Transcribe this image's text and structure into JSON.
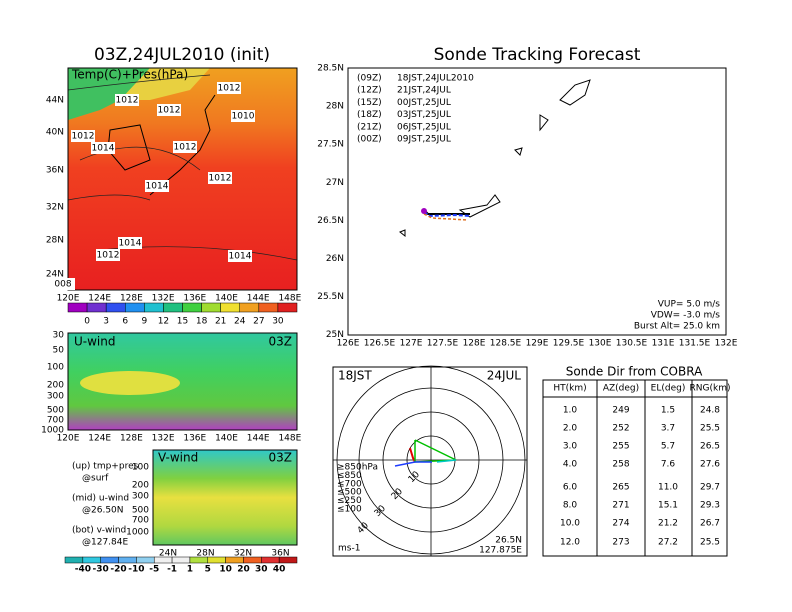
{
  "map_panel": {
    "title": "03Z,24JUL2010 (init)",
    "label": "Temp(C)+Pres(hPa)",
    "lat_labels": [
      "44N",
      "40N",
      "36N",
      "32N",
      "28N",
      "24N"
    ],
    "lon_labels": [
      "120E",
      "124E",
      "128E",
      "132E",
      "136E",
      "140E",
      "144E",
      "148E"
    ],
    "isobar_labels": [
      "1012",
      "1012",
      "1012",
      "1010",
      "1012",
      "1014",
      "1012",
      "1012",
      "1014",
      "1014",
      "1012",
      "1014",
      "008"
    ],
    "colorbar_labels": [
      "0",
      "3",
      "6",
      "9",
      "12",
      "15",
      "18",
      "21",
      "24",
      "27",
      "30"
    ]
  },
  "u_wind_panel": {
    "label": "U-wind",
    "time": "03Z",
    "pressure_labels": [
      "30",
      "50",
      "100",
      "200",
      "300",
      "500",
      "700",
      "1000"
    ],
    "lon_labels": [
      "120E",
      "124E",
      "128E",
      "132E",
      "136E",
      "140E",
      "144E",
      "148E"
    ]
  },
  "v_wind_panel": {
    "label": "V-wind",
    "time": "03Z",
    "pressure_labels": [
      "100",
      "200",
      "300",
      "500",
      "700",
      "1000"
    ],
    "lat_labels": [
      "24N",
      "28N",
      "32N",
      "36N"
    ]
  },
  "panel_notes": [
    "(up) tmp+pres",
    "@surf",
    "(mid) u-wind",
    "@26.50N",
    "(bot) v-wind",
    "@127.84E"
  ],
  "wind_colorbar_labels": [
    "-40",
    "-30",
    "-20",
    "-10",
    "-5",
    "-1",
    "1",
    "5",
    "10",
    "20",
    "30",
    "40"
  ],
  "tracking": {
    "title": "Sonde Tracking Forecast",
    "lat_labels": [
      "28.5N",
      "28N",
      "27.5N",
      "27N",
      "26.5N",
      "26N",
      "25.5N",
      "25N"
    ],
    "lon_labels": [
      "126E",
      "126.5E",
      "127E",
      "127.5E",
      "128E",
      "128.5E",
      "129E",
      "129.5E",
      "130E",
      "130.5E",
      "131E",
      "131.5E",
      "132E"
    ],
    "legend": [
      {
        "tag": "(09Z)",
        "text": "18JST,24JUL2010",
        "color": "#000000"
      },
      {
        "tag": "(12Z)",
        "text": "21JST,24JUL",
        "color": "#a000c0"
      },
      {
        "tag": "(15Z)",
        "text": "00JST,25JUL",
        "color": "#1e3cff"
      },
      {
        "tag": "(18Z)",
        "text": "03JST,25JUL",
        "color": "#00b400"
      },
      {
        "tag": "(21Z)",
        "text": "06JST,25JUL",
        "color": "#f0b030"
      },
      {
        "tag": "(00Z)",
        "text": "09JST,25JUL",
        "color": "#e07020"
      }
    ],
    "params": [
      "VUP= 5.0 m/s",
      "VDW= -3.0 m/s",
      "Burst Alt= 25.0 km"
    ]
  },
  "hodograph": {
    "time": "18JST",
    "date": "24JUL",
    "legend": [
      {
        "text": "≥850hPa",
        "color": "#e00000"
      },
      {
        "text": "≤850",
        "color": "#f08c00"
      },
      {
        "text": "≤700",
        "color": "#c8c800"
      },
      {
        "text": "≤500",
        "color": "#00c000"
      },
      {
        "text": "≤250",
        "color": "#00c8c8"
      },
      {
        "text": "≤100",
        "color": "#1e3cff"
      }
    ],
    "ring_labels": [
      "10",
      "20",
      "30",
      "40"
    ],
    "unit": "ms-1",
    "lat": "26.5N",
    "lon": "127.875E"
  },
  "table": {
    "title": "Sonde Dir from COBRA",
    "headers": [
      "HT(km)",
      "AZ(deg)",
      "EL(deg)",
      "RNG(km)"
    ],
    "rows": [
      [
        "1.0",
        "249",
        "1.5",
        "24.8"
      ],
      [
        "2.0",
        "252",
        "3.7",
        "25.5"
      ],
      [
        "3.0",
        "255",
        "5.7",
        "26.5"
      ],
      [
        "4.0",
        "258",
        "7.6",
        "27.6"
      ],
      [
        "6.0",
        "265",
        "11.0",
        "29.7"
      ],
      [
        "8.0",
        "271",
        "15.1",
        "29.3"
      ],
      [
        "10.0",
        "274",
        "21.2",
        "26.7"
      ],
      [
        "12.0",
        "273",
        "27.2",
        "25.5"
      ]
    ]
  }
}
